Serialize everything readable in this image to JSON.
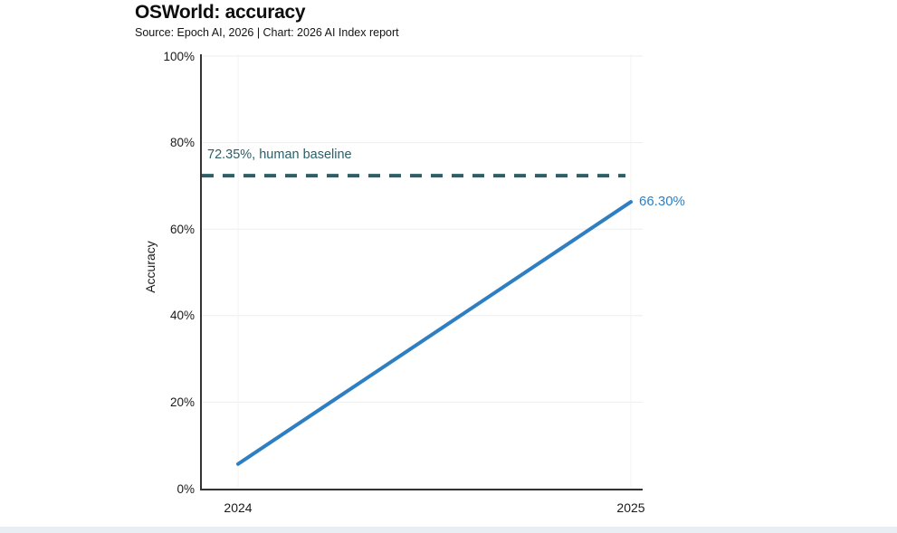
{
  "page": {
    "title": "OSWorld: accuracy",
    "subtitle": "Source: Epoch AI, 2026 | Chart: 2026 AI Index report"
  },
  "chart_data": {
    "type": "line",
    "title": "OSWorld: accuracy",
    "subtitle": "Source: Epoch AI, 2026 | Chart: 2026 AI Index report",
    "xlabel": "",
    "ylabel": "Accuracy",
    "x": [
      2024,
      2025
    ],
    "series": [
      {
        "name": "OSWorld accuracy",
        "values": [
          5.7,
          66.3
        ],
        "color": "#2e7fc2",
        "end_label": "66.30%"
      }
    ],
    "baseline": {
      "value": 72.35,
      "label": "72.35%, human baseline",
      "color": "#2c5f66",
      "style": "dashed"
    },
    "ylim": [
      0,
      100
    ],
    "ytick_values": [
      0,
      20,
      40,
      60,
      80,
      100
    ],
    "ytick_labels": [
      "0%",
      "20%",
      "40%",
      "60%",
      "80%",
      "100%"
    ],
    "xtick_labels": [
      "2024",
      "2025"
    ],
    "grid": true,
    "legend_position": "none",
    "colors": {
      "axis": "#333333",
      "grid": "#eeeeee",
      "vgrid": "#f3f3f3",
      "background": "#ffffff",
      "footer_strip": "#e8eef4"
    }
  }
}
